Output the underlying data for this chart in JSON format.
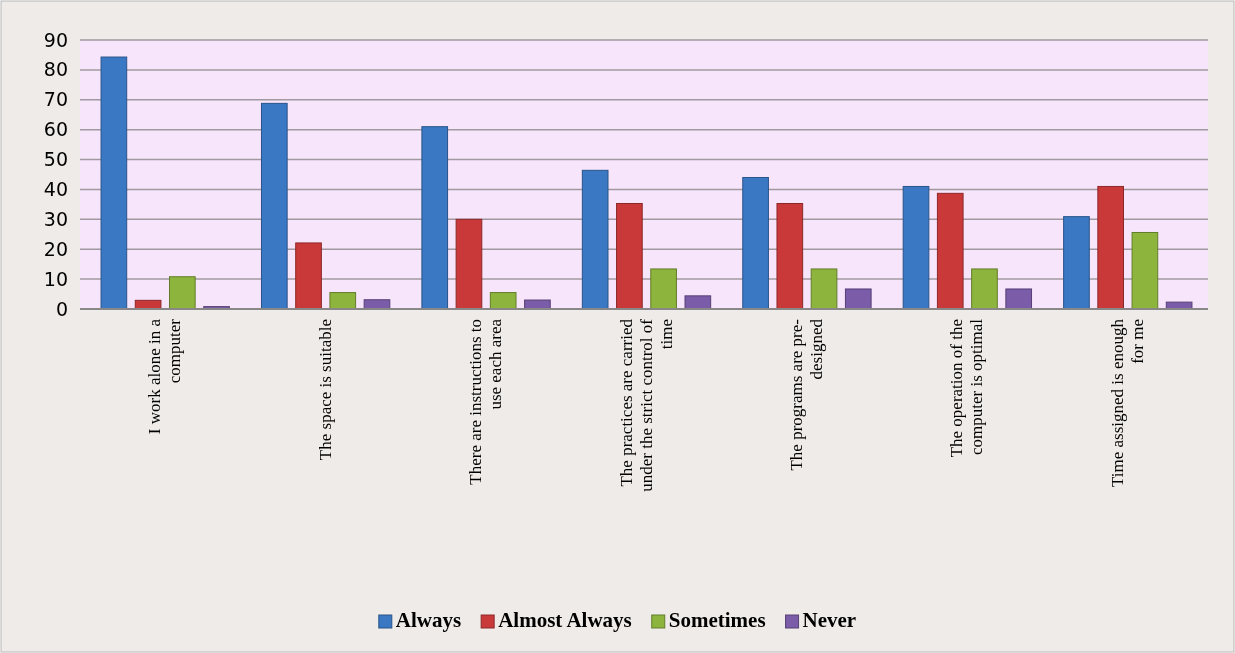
{
  "chart_data": {
    "type": "bar",
    "categories": [
      "I work alone in a computer",
      "The space is suitable",
      "There are instructions to use each area",
      "The practices are carried under the strict control of time",
      "The programs are pre-designed",
      "The operation of the computer is optimal",
      "Time assigned is enough for me"
    ],
    "series": [
      {
        "name": "Always",
        "color": "#3a78c4",
        "values": [
          84.3,
          68.8,
          61,
          46.4,
          44,
          41,
          30.9
        ]
      },
      {
        "name": "Almost Always",
        "color": "#c9393a",
        "values": [
          2.9,
          22.1,
          30,
          35.3,
          35.3,
          38.7,
          41
        ]
      },
      {
        "name": "Sometimes",
        "color": "#8db43c",
        "values": [
          10.8,
          5.5,
          5.5,
          13.4,
          13.4,
          13.4,
          25.6
        ]
      },
      {
        "name": "Never",
        "color": "#7b5ca8",
        "values": [
          0.8,
          3.1,
          3,
          4.4,
          6.7,
          6.7,
          2.3
        ]
      }
    ],
    "ylim": [
      0,
      90
    ],
    "yticks": [
      0,
      10,
      20,
      30,
      40,
      50,
      60,
      70,
      80,
      90
    ],
    "grid": "y",
    "legend": "bottom"
  }
}
